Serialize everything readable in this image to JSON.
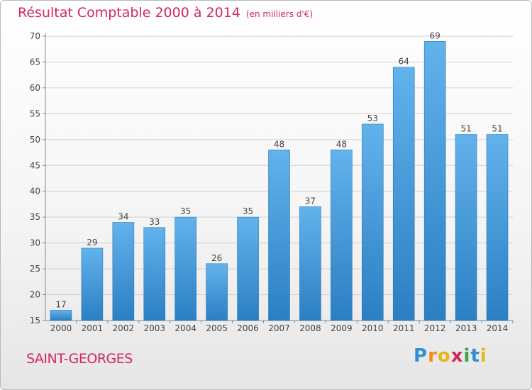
{
  "title": "Résultat Comptable 2000 à 2014",
  "unit_note": "(en milliers d'€)",
  "city": "SAINT-GEORGES",
  "logo": {
    "text": "Proxiti",
    "letters": [
      {
        "ch": "P",
        "color": "#2f8fd8"
      },
      {
        "ch": "r",
        "color": "#f28c1c"
      },
      {
        "ch": "o",
        "color": "#e8b51a"
      },
      {
        "ch": "x",
        "color": "#d3285a"
      },
      {
        "ch": "i",
        "color": "#3aa845"
      },
      {
        "ch": "t",
        "color": "#2f8fd8"
      },
      {
        "ch": "i",
        "color": "#e8b51a"
      }
    ]
  },
  "colors": {
    "accent": "#d3285a",
    "bar_top": "#62b2ec",
    "bar_bottom": "#2b7fc2",
    "bar_stroke": "#2a78b8"
  },
  "chart_data": {
    "type": "bar",
    "categories": [
      "2000",
      "2001",
      "2002",
      "2003",
      "2004",
      "2005",
      "2006",
      "2007",
      "2008",
      "2009",
      "2010",
      "2011",
      "2012",
      "2013",
      "2014"
    ],
    "values": [
      17,
      29,
      34,
      33,
      35,
      26,
      35,
      48,
      37,
      48,
      53,
      64,
      69,
      51,
      51
    ],
    "data_labels": [
      "17",
      "29",
      "34",
      "33",
      "35",
      "26",
      "35",
      "48",
      "37",
      "48",
      "53",
      "64",
      "69",
      "51",
      "51"
    ],
    "yticks": [
      "15",
      "20",
      "25",
      "30",
      "35",
      "40",
      "45",
      "50",
      "55",
      "60",
      "65",
      "70"
    ],
    "ylim": [
      15,
      70
    ],
    "grid": true,
    "legend": "none"
  }
}
